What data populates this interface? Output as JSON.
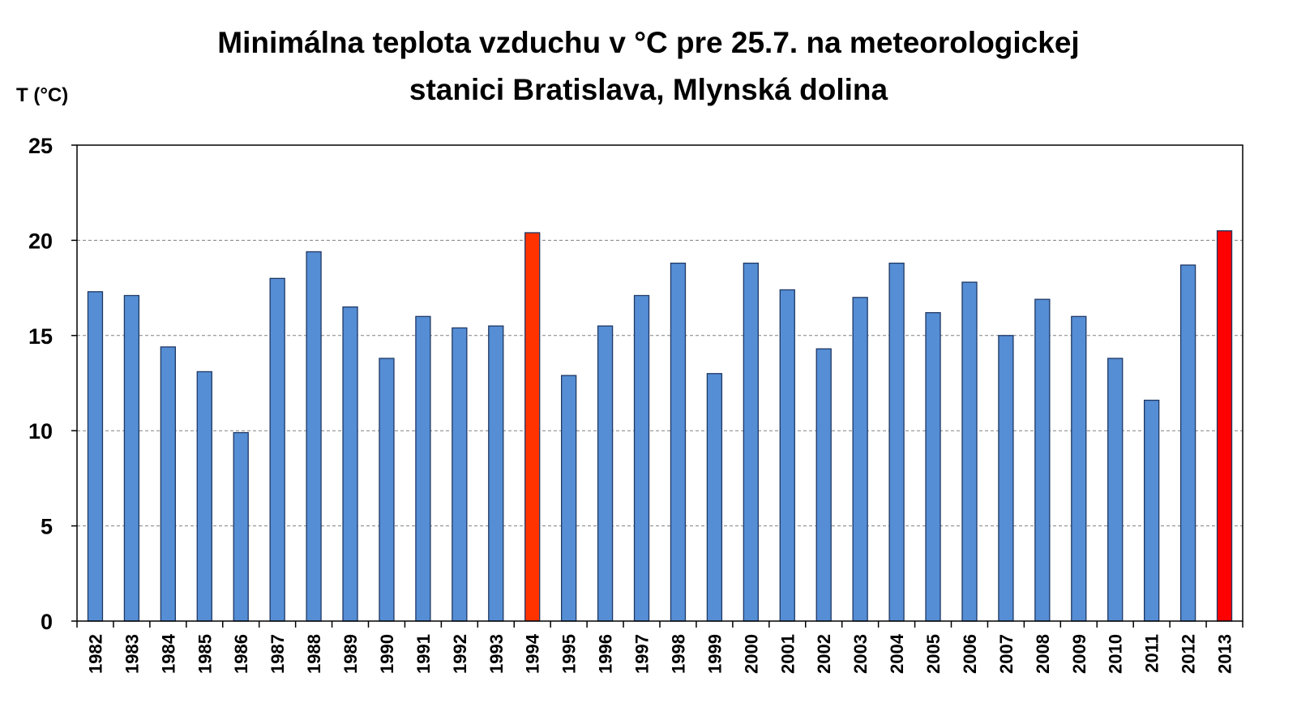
{
  "chart_data": {
    "type": "bar",
    "title_line1": "Minimálna teplota vzduchu v °C pre 25.7. na meteorologickej",
    "title_line2": "stanici Bratislava, Mlynská dolina",
    "ylabel": "T (°C)",
    "xlabel": "",
    "ylim": [
      0,
      25
    ],
    "yticks": [
      "0",
      "5",
      "10",
      "15",
      "20",
      "25"
    ],
    "grid": true,
    "categories": [
      "1982",
      "1983",
      "1984",
      "1985",
      "1986",
      "1987",
      "1988",
      "1989",
      "1990",
      "1991",
      "1992",
      "1993",
      "1994",
      "1995",
      "1996",
      "1997",
      "1998",
      "1999",
      "2000",
      "2001",
      "2002",
      "2003",
      "2004",
      "2005",
      "2006",
      "2007",
      "2008",
      "2009",
      "2010",
      "2011",
      "2012",
      "2013"
    ],
    "values": [
      17.3,
      17.1,
      14.4,
      13.1,
      9.9,
      18.0,
      19.4,
      16.5,
      13.8,
      16.0,
      15.4,
      15.5,
      20.4,
      12.9,
      15.5,
      17.1,
      18.8,
      13.0,
      18.8,
      17.4,
      14.3,
      17.0,
      18.8,
      16.2,
      17.8,
      15.0,
      16.9,
      16.0,
      13.8,
      11.6,
      18.7,
      20.5
    ],
    "highlighted": [
      "1994",
      "2013"
    ],
    "colors": {
      "bar": "#558ed5",
      "highlight_1994": "#ff3300",
      "highlight_2013": "#ff0000",
      "bar_stroke": "#1f3864",
      "grid": "#808080"
    }
  }
}
